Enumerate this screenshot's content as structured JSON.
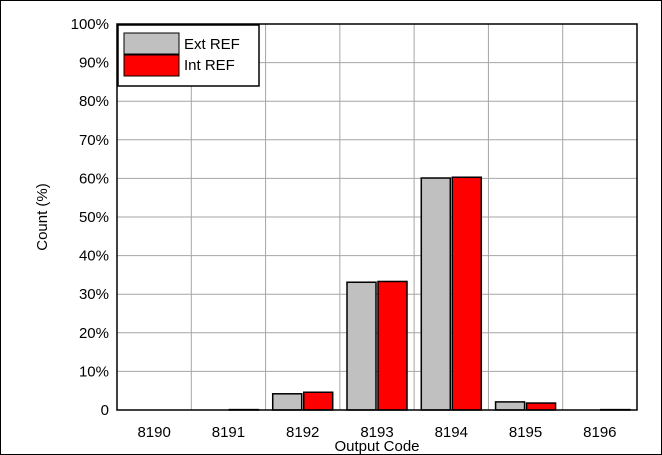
{
  "chart_data": {
    "type": "bar",
    "xlabel": "Output Code",
    "ylabel": "Count (%)",
    "categories": [
      "8190",
      "8191",
      "8192",
      "8193",
      "8194",
      "8195",
      "8196"
    ],
    "series": [
      {
        "name": "Ext REF",
        "color": "#c0c0c0",
        "values": [
          0,
          0,
          4.2,
          33.1,
          60.1,
          2.1,
          0
        ]
      },
      {
        "name": "Int REF",
        "color": "#ff0000",
        "values": [
          0,
          0.1,
          4.6,
          33.3,
          60.3,
          1.8,
          0.1
        ]
      }
    ],
    "ylim": [
      0,
      100
    ],
    "yticks": [
      0,
      10,
      20,
      30,
      40,
      50,
      60,
      70,
      80,
      90,
      100
    ],
    "ytick_labels": [
      "0",
      "10%",
      "20%",
      "30%",
      "40%",
      "50%",
      "60%",
      "70%",
      "80%",
      "90%",
      "100%"
    ],
    "grid": true,
    "legend_position": "top-left"
  }
}
